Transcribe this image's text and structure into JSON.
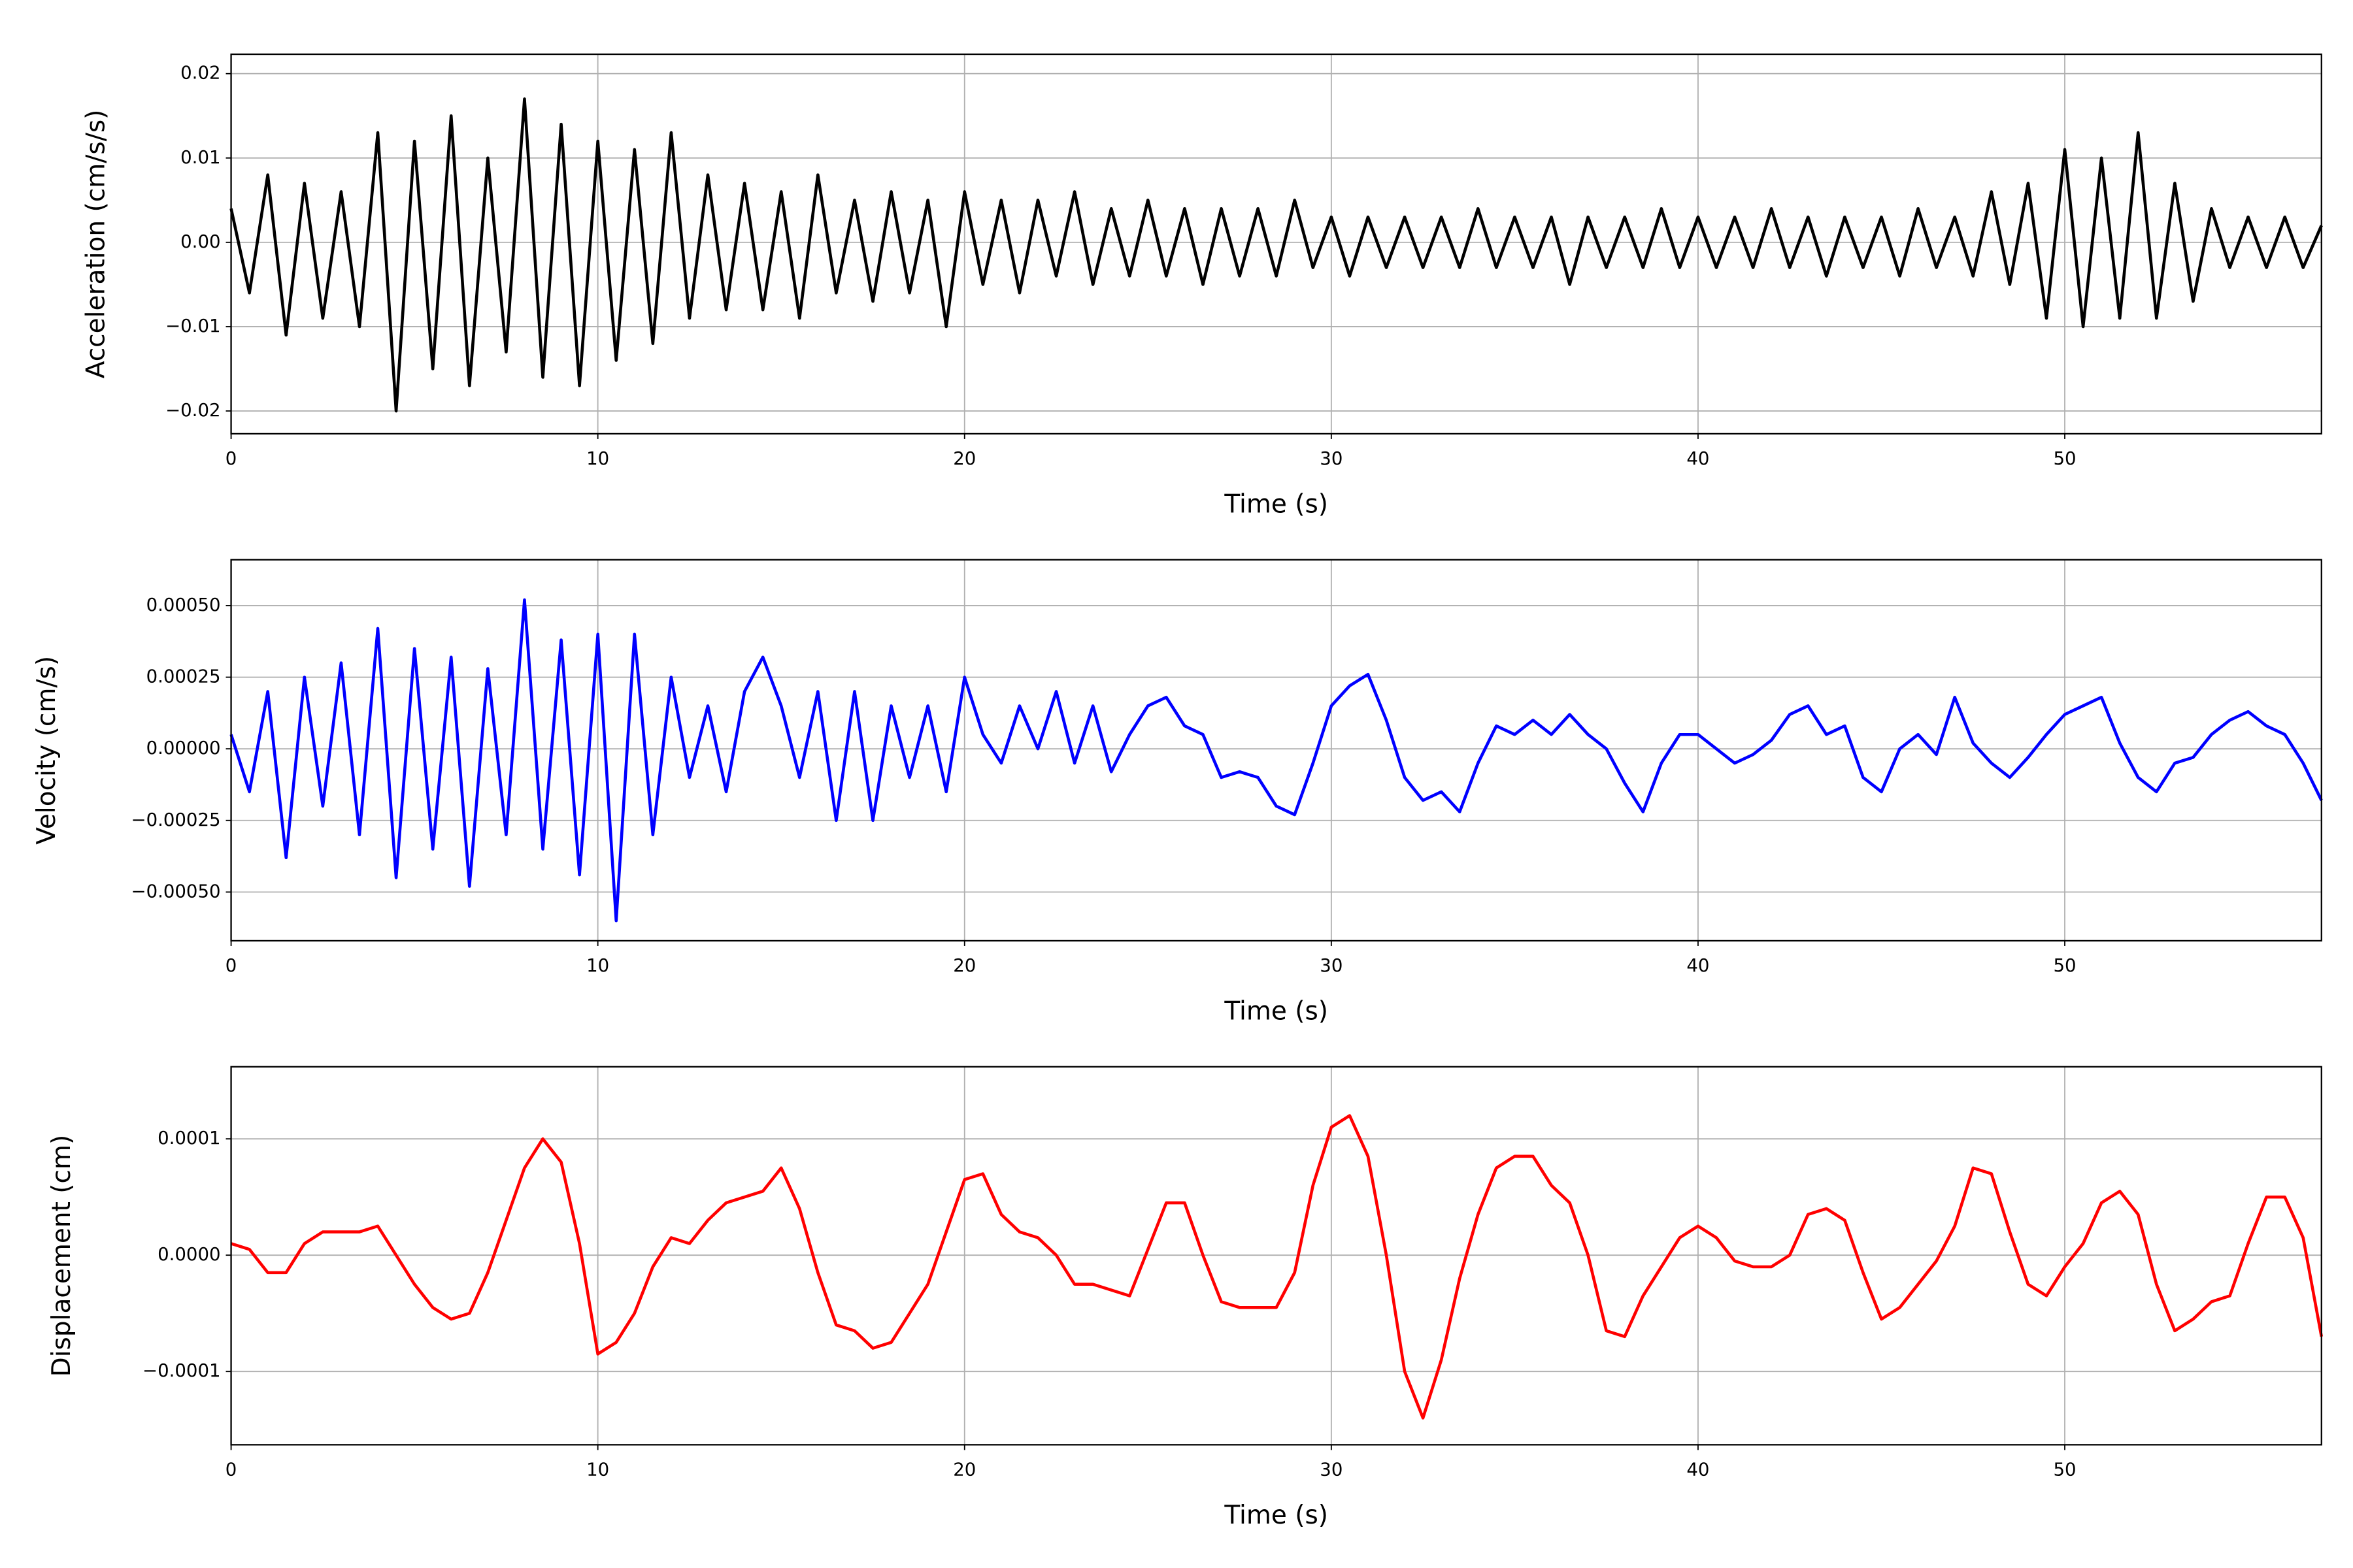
{
  "chart_data": [
    {
      "type": "line",
      "xlabel": "Time (s)",
      "ylabel": "Acceleration (cm/s/s)",
      "grid": true,
      "xlim": [
        0,
        57
      ],
      "xticks": [
        0,
        10,
        20,
        30,
        40,
        50
      ],
      "ylim": [
        -0.0227,
        0.0223
      ],
      "yticks": [
        {
          "value": -0.02,
          "label": "−0.02"
        },
        {
          "value": -0.01,
          "label": "−0.01"
        },
        {
          "value": 0,
          "label": "0.00"
        },
        0.01,
        0.02
      ],
      "x": [
        0,
        0.5,
        1,
        1.5,
        2,
        2.5,
        3,
        3.5,
        4,
        4.5,
        5,
        5.5,
        6,
        6.5,
        7,
        7.5,
        8,
        8.5,
        9,
        9.5,
        10,
        10.5,
        11,
        11.5,
        12,
        12.5,
        13,
        13.5,
        14,
        14.5,
        15,
        15.5,
        16,
        16.5,
        17,
        17.5,
        18,
        18.5,
        19,
        19.5,
        20,
        20.5,
        21,
        21.5,
        22,
        22.5,
        23,
        23.5,
        24,
        24.5,
        25,
        25.5,
        26,
        26.5,
        27,
        27.5,
        28,
        28.5,
        29,
        29.5,
        30,
        30.5,
        31,
        31.5,
        32,
        32.5,
        33,
        33.5,
        34,
        34.5,
        35,
        35.5,
        36,
        36.5,
        37,
        37.5,
        38,
        38.5,
        39,
        39.5,
        40,
        40.5,
        41,
        41.5,
        42,
        42.5,
        43,
        43.5,
        44,
        44.5,
        45,
        45.5,
        46,
        46.5,
        47,
        47.5,
        48,
        48.5,
        49,
        49.5,
        50,
        50.5,
        51,
        51.5,
        52,
        52.5,
        53,
        53.5,
        54,
        54.5,
        55,
        55.5,
        56,
        56.5,
        57
      ],
      "series": [
        {
          "color": "#000000",
          "values": [
            0.004,
            -0.006,
            0.008,
            -0.011,
            0.007,
            -0.009,
            0.006,
            -0.01,
            0.013,
            -0.02,
            0.012,
            -0.015,
            0.015,
            -0.017,
            0.01,
            -0.013,
            0.017,
            -0.016,
            0.014,
            -0.017,
            0.012,
            -0.014,
            0.011,
            -0.012,
            0.013,
            -0.009,
            0.008,
            -0.008,
            0.007,
            -0.008,
            0.006,
            -0.009,
            0.008,
            -0.006,
            0.005,
            -0.007,
            0.006,
            -0.006,
            0.005,
            -0.01,
            0.006,
            -0.005,
            0.005,
            -0.006,
            0.005,
            -0.004,
            0.006,
            -0.005,
            0.004,
            -0.004,
            0.005,
            -0.004,
            0.004,
            -0.005,
            0.004,
            -0.004,
            0.004,
            -0.004,
            0.005,
            -0.003,
            0.003,
            -0.004,
            0.003,
            -0.003,
            0.003,
            -0.003,
            0.003,
            -0.003,
            0.004,
            -0.003,
            0.003,
            -0.003,
            0.003,
            -0.005,
            0.003,
            -0.003,
            0.003,
            -0.003,
            0.004,
            -0.003,
            0.003,
            -0.003,
            0.003,
            -0.003,
            0.004,
            -0.003,
            0.003,
            -0.004,
            0.003,
            -0.003,
            0.003,
            -0.004,
            0.004,
            -0.003,
            0.003,
            -0.004,
            0.006,
            -0.005,
            0.007,
            -0.009,
            0.011,
            -0.01,
            0.01,
            -0.009,
            0.013,
            -0.009,
            0.007,
            -0.007,
            0.004,
            -0.003,
            0.003,
            -0.003,
            0.003,
            -0.003,
            0.002
          ]
        }
      ]
    },
    {
      "type": "line",
      "xlabel": "Time (s)",
      "ylabel": "Velocity (cm/s)",
      "grid": true,
      "xlim": [
        0,
        57
      ],
      "xticks": [
        0,
        10,
        20,
        30,
        40,
        50
      ],
      "ylim": [
        -0.00067,
        0.00066
      ],
      "yticks": [
        {
          "value": -0.0005,
          "label": "−0.00050"
        },
        {
          "value": -0.00025,
          "label": "−0.00025"
        },
        {
          "value": 0,
          "label": "0.00000"
        },
        {
          "value": 0.00025,
          "label": "0.00025"
        },
        {
          "value": 0.0005,
          "label": "0.00050"
        }
      ],
      "x": [
        0,
        0.5,
        1,
        1.5,
        2,
        2.5,
        3,
        3.5,
        4,
        4.5,
        5,
        5.5,
        6,
        6.5,
        7,
        7.5,
        8,
        8.5,
        9,
        9.5,
        10,
        10.5,
        11,
        11.5,
        12,
        12.5,
        13,
        13.5,
        14,
        14.5,
        15,
        15.5,
        16,
        16.5,
        17,
        17.5,
        18,
        18.5,
        19,
        19.5,
        20,
        20.5,
        21,
        21.5,
        22,
        22.5,
        23,
        23.5,
        24,
        24.5,
        25,
        25.5,
        26,
        26.5,
        27,
        27.5,
        28,
        28.5,
        29,
        29.5,
        30,
        30.5,
        31,
        31.5,
        32,
        32.5,
        33,
        33.5,
        34,
        34.5,
        35,
        35.5,
        36,
        36.5,
        37,
        37.5,
        38,
        38.5,
        39,
        39.5,
        40,
        40.5,
        41,
        41.5,
        42,
        42.5,
        43,
        43.5,
        44,
        44.5,
        45,
        45.5,
        46,
        46.5,
        47,
        47.5,
        48,
        48.5,
        49,
        49.5,
        50,
        50.5,
        51,
        51.5,
        52,
        52.5,
        53,
        53.5,
        54,
        54.5,
        55,
        55.5,
        56,
        56.5,
        57
      ],
      "series": [
        {
          "color": "#0000ff",
          "values": [
            5e-05,
            -0.00015,
            0.0002,
            -0.00038,
            0.00025,
            -0.0002,
            0.0003,
            -0.0003,
            0.00042,
            -0.00045,
            0.00035,
            -0.00035,
            0.00032,
            -0.00048,
            0.00028,
            -0.0003,
            0.00052,
            -0.00035,
            0.00038,
            -0.00044,
            0.0004,
            -0.0006,
            0.0004,
            -0.0003,
            0.00025,
            -0.0001,
            0.00015,
            -0.00015,
            0.0002,
            0.00032,
            0.00015,
            -0.0001,
            0.0002,
            -0.00025,
            0.0002,
            -0.00025,
            0.00015,
            -0.0001,
            0.00015,
            -0.00015,
            0.00025,
            5e-05,
            -5e-05,
            0.00015,
            0,
            0.0002,
            -5e-05,
            0.00015,
            -8e-05,
            5e-05,
            0.00015,
            0.00018,
            8e-05,
            5e-05,
            -0.0001,
            -8e-05,
            -0.0001,
            -0.0002,
            -0.00023,
            -5e-05,
            0.00015,
            0.00022,
            0.00026,
            0.0001,
            -0.0001,
            -0.00018,
            -0.00015,
            -0.00022,
            -5e-05,
            8e-05,
            5e-05,
            0.0001,
            5e-05,
            0.00012,
            5e-05,
            0,
            -0.00012,
            -0.00022,
            -5e-05,
            5e-05,
            5e-05,
            0,
            -5e-05,
            -2e-05,
            3e-05,
            0.00012,
            0.00015,
            5e-05,
            8e-05,
            -0.0001,
            -0.00015,
            0,
            5e-05,
            -2e-05,
            0.00018,
            2e-05,
            -5e-05,
            -0.0001,
            -3e-05,
            5e-05,
            0.00012,
            0.00015,
            0.00018,
            2e-05,
            -0.0001,
            -0.00015,
            -5e-05,
            -3e-05,
            5e-05,
            0.0001,
            0.00013,
            8e-05,
            5e-05,
            -5e-05,
            -0.00018
          ]
        }
      ]
    },
    {
      "type": "line",
      "xlabel": "Time (s)",
      "ylabel": "Displacement (cm)",
      "grid": true,
      "xlim": [
        0,
        57
      ],
      "xticks": [
        0,
        10,
        20,
        30,
        40,
        50
      ],
      "ylim": [
        -0.000163,
        0.000162
      ],
      "yticks": [
        {
          "value": -0.0001,
          "label": "−0.0001"
        },
        {
          "value": 0,
          "label": "0.0000"
        },
        0.0001
      ],
      "x": [
        0,
        0.5,
        1,
        1.5,
        2,
        2.5,
        3,
        3.5,
        4,
        4.5,
        5,
        5.5,
        6,
        6.5,
        7,
        7.5,
        8,
        8.5,
        9,
        9.5,
        10,
        10.5,
        11,
        11.5,
        12,
        12.5,
        13,
        13.5,
        14,
        14.5,
        15,
        15.5,
        16,
        16.5,
        17,
        17.5,
        18,
        18.5,
        19,
        19.5,
        20,
        20.5,
        21,
        21.5,
        22,
        22.5,
        23,
        23.5,
        24,
        24.5,
        25,
        25.5,
        26,
        26.5,
        27,
        27.5,
        28,
        28.5,
        29,
        29.5,
        30,
        30.5,
        31,
        31.5,
        32,
        32.5,
        33,
        33.5,
        34,
        34.5,
        35,
        35.5,
        36,
        36.5,
        37,
        37.5,
        38,
        38.5,
        39,
        39.5,
        40,
        40.5,
        41,
        41.5,
        42,
        42.5,
        43,
        43.5,
        44,
        44.5,
        45,
        45.5,
        46,
        46.5,
        47,
        47.5,
        48,
        48.5,
        49,
        49.5,
        50,
        50.5,
        51,
        51.5,
        52,
        52.5,
        53,
        53.5,
        54,
        54.5,
        55,
        55.5,
        56,
        56.5,
        57
      ],
      "series": [
        {
          "color": "#ff0000",
          "values": [
            1e-05,
            5e-06,
            -1.5e-05,
            -1.5e-05,
            1e-05,
            2e-05,
            2e-05,
            2e-05,
            2.5e-05,
            0,
            -2.5e-05,
            -4.5e-05,
            -5.5e-05,
            -5e-05,
            -1.5e-05,
            3e-05,
            7.5e-05,
            0.0001,
            8e-05,
            1e-05,
            -8.5e-05,
            -7.5e-05,
            -5e-05,
            -1e-05,
            1.5e-05,
            1e-05,
            3e-05,
            4.5e-05,
            5e-05,
            5.5e-05,
            7.5e-05,
            4e-05,
            -1.5e-05,
            -6e-05,
            -6.5e-05,
            -8e-05,
            -7.5e-05,
            -5e-05,
            -2.5e-05,
            2e-05,
            6.5e-05,
            7e-05,
            3.5e-05,
            2e-05,
            1.5e-05,
            0,
            -2.5e-05,
            -2.5e-05,
            -3e-05,
            -3.5e-05,
            5e-06,
            4.5e-05,
            4.5e-05,
            0,
            -4e-05,
            -4.5e-05,
            -4.5e-05,
            -4.5e-05,
            -1.5e-05,
            6e-05,
            0.00011,
            0.00012,
            8.5e-05,
            0,
            -0.0001,
            -0.00014,
            -9e-05,
            -2e-05,
            3.5e-05,
            7.5e-05,
            8.5e-05,
            8.5e-05,
            6e-05,
            4.5e-05,
            0,
            -6.5e-05,
            -7e-05,
            -3.5e-05,
            -1e-05,
            1.5e-05,
            2.5e-05,
            1.5e-05,
            -5e-06,
            -1e-05,
            -1e-05,
            0,
            3.5e-05,
            4e-05,
            3e-05,
            -1.5e-05,
            -5.5e-05,
            -4.5e-05,
            -2.5e-05,
            -5e-06,
            2.5e-05,
            7.5e-05,
            7e-05,
            2e-05,
            -2.5e-05,
            -3.5e-05,
            -1e-05,
            1e-05,
            4.5e-05,
            5.5e-05,
            3.5e-05,
            -2.5e-05,
            -6.5e-05,
            -5.5e-05,
            -4e-05,
            -3.5e-05,
            1e-05,
            5e-05,
            5e-05,
            1.5e-05,
            -7e-05
          ]
        }
      ]
    }
  ]
}
